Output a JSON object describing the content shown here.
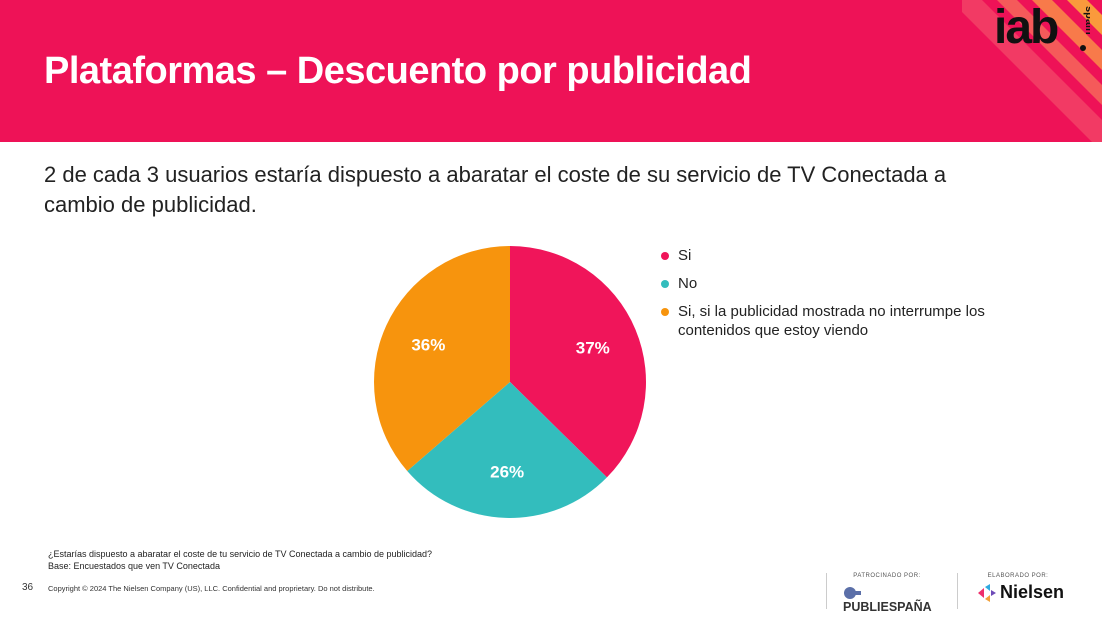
{
  "header": {
    "title": "Plataformas  – Descuento por publicidad"
  },
  "logo": {
    "text": "iab",
    "sub": "spain"
  },
  "subtitle": "2 de cada 3 usuarios estaría dispuesto      a abaratar el coste de su servicio de TV Conectada a cambio de publicidad.",
  "colors": {
    "brand": "#ee1257",
    "si": "#f0155a",
    "no": "#33bdbd",
    "si_condicional": "#f7940d"
  },
  "chart_data": {
    "type": "pie",
    "title": "",
    "categories": [
      "Si",
      "No",
      "Si, si la publicidad mostrada no interrumpe los contenidos que estoy viendo"
    ],
    "values": [
      37,
      26,
      36
    ],
    "labels": [
      "37%",
      "26%",
      "36%"
    ],
    "legend_position": "right"
  },
  "legend": {
    "items": [
      {
        "label": "Si",
        "color": "#f0155a"
      },
      {
        "label": "No",
        "color": "#33bdbd"
      },
      {
        "label": "Si, si la publicidad mostrada no interrumpe los contenidos que estoy viendo",
        "color": "#f7940d"
      }
    ]
  },
  "footnote": {
    "question": "¿Estarías dispuesto  a abaratar el coste de tu servicio de TV Conectada a cambio de publicidad?",
    "base": "Base: Encuestados que ven TV Conectada"
  },
  "page_number": "36",
  "copyright": "Copyright © 2024 The Nielsen Company (US), LLC. Confidential and proprietary. Do not distribute.",
  "sponsor": {
    "label": "PATROCINADO POR:",
    "name": "PUBLIESPAÑA",
    "icon": "publiespana-logo-icon"
  },
  "maker": {
    "label": "ELABORADO POR:",
    "name": "Nielsen",
    "icon": "nielsen-logo-icon"
  }
}
